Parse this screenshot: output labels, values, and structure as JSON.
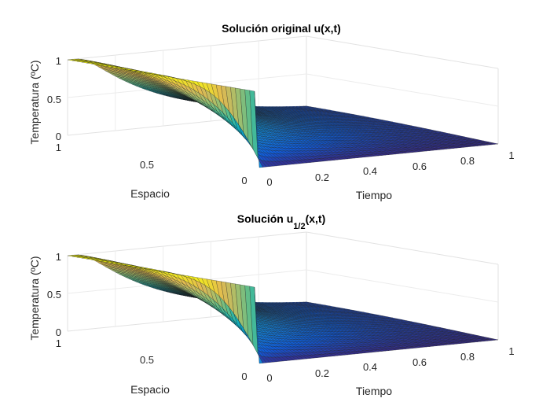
{
  "figure": {
    "background": "#ffffff"
  },
  "chart_data": [
    {
      "type": "surface",
      "title": "Solución original u(x,t)",
      "xlabel": "Espacio",
      "ylabel": "Tiempo",
      "zlabel": "Temperatura (ºC)",
      "x_range": [
        0,
        1
      ],
      "t_range": [
        0,
        1
      ],
      "z_range": [
        0,
        1
      ],
      "x_ticks": [
        "0",
        "0.5",
        "1"
      ],
      "t_ticks": [
        "0",
        "0.2",
        "0.4",
        "0.6",
        "0.8",
        "1"
      ],
      "z_ticks": [
        "0",
        "0.5",
        "1"
      ],
      "colormap": "parula",
      "grid": true,
      "description_of_values": {
        "x": [
          0,
          0.1,
          0.2,
          0.3,
          0.4,
          0.5,
          0.6,
          0.7,
          0.8,
          0.9,
          1.0
        ],
        "t0_profile": [
          1,
          1,
          1,
          1,
          1,
          1,
          1,
          1,
          1,
          1,
          1
        ],
        "t1_profile": [
          0,
          0,
          0,
          0,
          0,
          0,
          0,
          0,
          0,
          0,
          0
        ]
      }
    },
    {
      "type": "surface",
      "title_main": "Solución u",
      "title_subscript": "1/2",
      "title_suffix": "(x,t)",
      "xlabel": "Espacio",
      "ylabel": "Tiempo",
      "zlabel": "Temperatura (ºC)",
      "x_range": [
        0,
        1
      ],
      "t_range": [
        0,
        1
      ],
      "z_range": [
        0,
        1
      ],
      "x_ticks": [
        "0",
        "0.5",
        "1"
      ],
      "t_ticks": [
        "0",
        "0.2",
        "0.4",
        "0.6",
        "0.8",
        "1"
      ],
      "z_ticks": [
        "0",
        "0.5",
        "1"
      ],
      "colormap": "parula",
      "grid": true
    }
  ]
}
